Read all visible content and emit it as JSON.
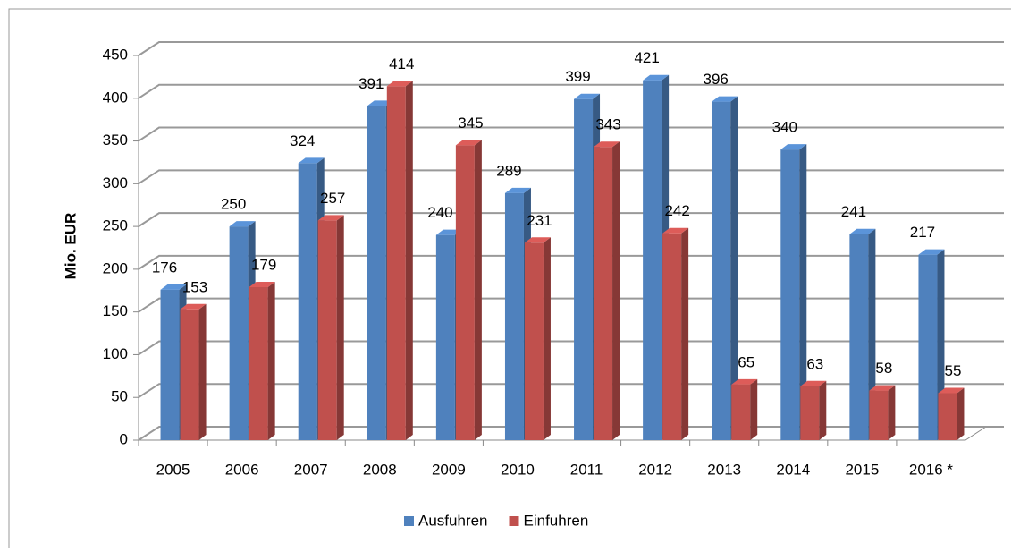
{
  "chart_data": {
    "type": "bar3d",
    "y_label": "Mio. EUR",
    "categories": [
      "2005",
      "2006",
      "2007",
      "2008",
      "2009",
      "2010",
      "2011",
      "2012",
      "2013",
      "2014",
      "2015",
      "2016 *"
    ],
    "series": [
      {
        "name": "Ausfuhren",
        "color": "#4f81bd",
        "values": [
          176,
          250,
          324,
          391,
          240,
          289,
          399,
          421,
          396,
          340,
          241,
          217
        ]
      },
      {
        "name": "Einfuhren",
        "color": "#c0504d",
        "values": [
          153,
          179,
          257,
          414,
          345,
          231,
          343,
          242,
          65,
          63,
          58,
          55
        ]
      }
    ],
    "ylim": [
      0,
      450
    ],
    "yticks": [
      0,
      50,
      100,
      150,
      200,
      250,
      300,
      350,
      400,
      450
    ],
    "grid": true,
    "legend": "bottom"
  }
}
